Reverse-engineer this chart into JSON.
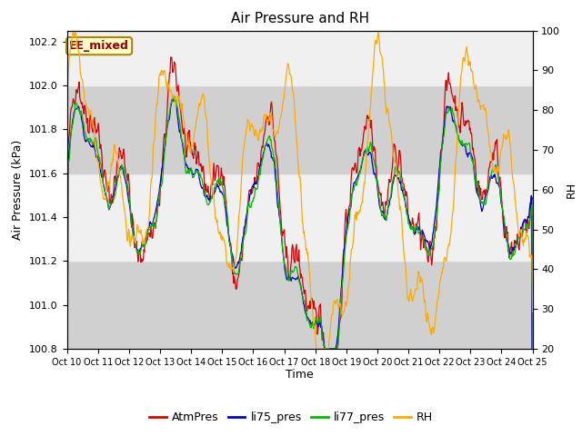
{
  "title": "Air Pressure and RH",
  "xlabel": "Time",
  "ylabel_left": "Air Pressure (kPa)",
  "ylabel_right": "RH",
  "ylim_left": [
    100.8,
    102.25
  ],
  "ylim_right": [
    20,
    100
  ],
  "annotation_text": "EE_mixed",
  "annotation_bg": "#ffffcc",
  "annotation_border": "#aa8800",
  "legend_labels": [
    "AtmPres",
    "li75_pres",
    "li77_pres",
    "RH"
  ],
  "legend_colors": [
    "#dd0000",
    "#0000cc",
    "#00bb00",
    "#ffaa00"
  ],
  "gray_band_color": "#d0d0d0",
  "white_band_color": "#f0f0f0",
  "xtick_labels": [
    "Oct 10",
    "Oct 11",
    "Oct 12",
    "Oct 13",
    "Oct 14",
    "Oct 15",
    "Oct 16",
    "Oct 17",
    "Oct 18",
    "Oct 19",
    "Oct 20",
    "Oct 21",
    "Oct 22",
    "Oct 23",
    "Oct 24",
    "Oct 25"
  ],
  "n_days": 15,
  "n_points": 800,
  "seed": 42
}
